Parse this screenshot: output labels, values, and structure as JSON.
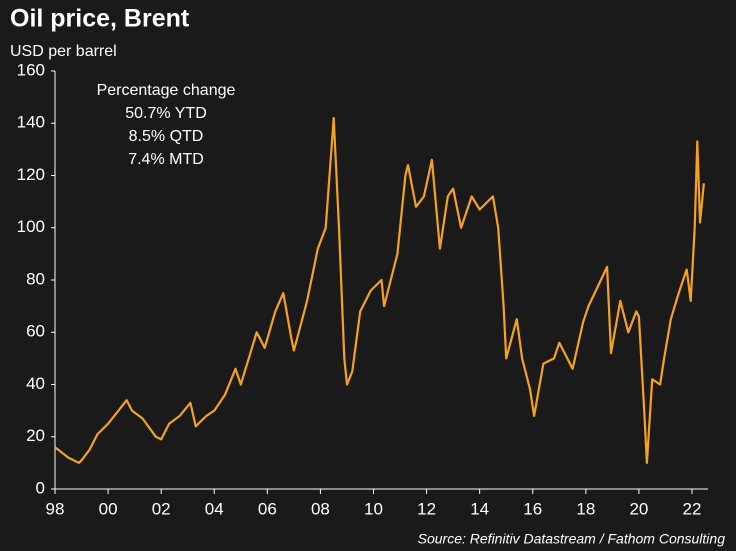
{
  "chart_data": {
    "type": "line",
    "title": "Oil price, Brent",
    "subtitle": "USD per barrel",
    "annotations": [
      "Percentage change",
      "50.7% YTD",
      "8.5% QTD",
      "7.4% MTD"
    ],
    "source": "Source: Refinitiv Datastream / Fathom Consulting",
    "series": [
      {
        "name": "Brent",
        "color": "#f7a21b",
        "x": [
          1998.0,
          1998.5,
          1998.9,
          1999.0,
          1999.3,
          1999.6,
          2000.0,
          2000.7,
          2000.9,
          2001.3,
          2001.8,
          2002.0,
          2002.3,
          2002.7,
          2003.1,
          2003.3,
          2003.7,
          2004.0,
          2004.4,
          2004.8,
          2005.0,
          2005.6,
          2005.9,
          2006.3,
          2006.6,
          2006.9,
          2007.0,
          2007.5,
          2007.9,
          2008.2,
          2008.5,
          2008.7,
          2008.9,
          2009.0,
          2009.2,
          2009.5,
          2009.9,
          2010.3,
          2010.4,
          2010.9,
          2011.2,
          2011.3,
          2011.6,
          2011.9,
          2012.2,
          2012.5,
          2012.8,
          2013.0,
          2013.3,
          2013.7,
          2014.0,
          2014.5,
          2014.7,
          2014.9,
          2015.0,
          2015.4,
          2015.6,
          2015.9,
          2016.05,
          2016.4,
          2016.8,
          2017.0,
          2017.5,
          2017.9,
          2018.1,
          2018.8,
          2018.95,
          2019.3,
          2019.6,
          2019.9,
          2020.0,
          2020.2,
          2020.3,
          2020.5,
          2020.8,
          2020.95,
          2021.2,
          2021.5,
          2021.8,
          2021.95,
          2022.1,
          2022.2,
          2022.3,
          2022.4,
          2022.45
        ],
        "values": [
          16,
          12,
          10,
          11,
          15,
          21,
          25,
          34,
          30,
          27,
          20,
          19,
          25,
          28,
          33,
          24,
          28,
          30,
          36,
          46,
          40,
          60,
          54,
          68,
          75,
          58,
          53,
          72,
          92,
          100,
          142,
          100,
          50,
          40,
          45,
          68,
          76,
          80,
          70,
          90,
          120,
          124,
          108,
          112,
          126,
          92,
          112,
          115,
          100,
          112,
          107,
          112,
          100,
          70,
          50,
          65,
          50,
          38,
          28,
          48,
          50,
          56,
          46,
          64,
          70,
          85,
          52,
          72,
          60,
          68,
          66,
          30,
          10,
          42,
          40,
          50,
          65,
          75,
          84,
          72,
          100,
          133,
          102,
          112,
          117
        ]
      }
    ],
    "xlim": [
      1998,
      2022.6
    ],
    "xticks": [
      {
        "value": 1998,
        "label": "98"
      },
      {
        "value": 2000,
        "label": "00"
      },
      {
        "value": 2002,
        "label": "02"
      },
      {
        "value": 2004,
        "label": "04"
      },
      {
        "value": 2006,
        "label": "06"
      },
      {
        "value": 2008,
        "label": "08"
      },
      {
        "value": 2010,
        "label": "10"
      },
      {
        "value": 2012,
        "label": "12"
      },
      {
        "value": 2014,
        "label": "14"
      },
      {
        "value": 2016,
        "label": "16"
      },
      {
        "value": 2018,
        "label": "18"
      },
      {
        "value": 2020,
        "label": "20"
      },
      {
        "value": 2022,
        "label": "22"
      }
    ],
    "ylim": [
      0,
      160
    ],
    "yticks": [
      0,
      20,
      40,
      60,
      80,
      100,
      120,
      140,
      160
    ],
    "grid": false
  }
}
